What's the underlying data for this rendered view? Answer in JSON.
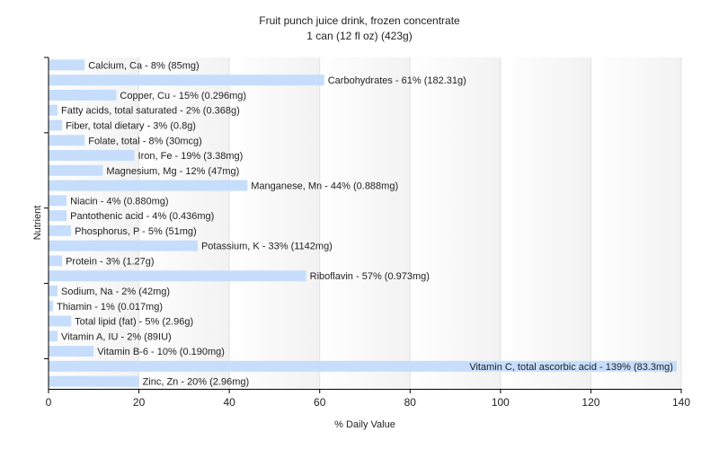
{
  "chart_data": {
    "type": "bar",
    "orientation": "horizontal",
    "title": "Fruit punch juice drink, frozen concentrate",
    "subtitle": "1 can (12 fl oz) (423g)",
    "xlabel": "% Daily Value",
    "ylabel": "Nutrient",
    "xlim": [
      0,
      140
    ],
    "xticks": [
      0,
      20,
      40,
      60,
      80,
      100,
      120,
      140
    ],
    "grid": true,
    "legend": "none",
    "bar_color": "#c6defc",
    "categories": [
      "Calcium, Ca",
      "Carbohydrates",
      "Copper, Cu",
      "Fatty acids, total saturated",
      "Fiber, total dietary",
      "Folate, total",
      "Iron, Fe",
      "Magnesium, Mg",
      "Manganese, Mn",
      "Niacin",
      "Pantothenic acid",
      "Phosphorus, P",
      "Potassium, K",
      "Protein",
      "Riboflavin",
      "Sodium, Na",
      "Thiamin",
      "Total lipid (fat)",
      "Vitamin A, IU",
      "Vitamin B-6",
      "Vitamin C, total ascorbic acid",
      "Zinc, Zn"
    ],
    "values": [
      8,
      61,
      15,
      2,
      3,
      8,
      19,
      12,
      44,
      4,
      4,
      5,
      33,
      3,
      57,
      2,
      1,
      5,
      2,
      10,
      139,
      20
    ],
    "labels": [
      "Calcium, Ca - 8% (85mg)",
      "Carbohydrates - 61% (182.31g)",
      "Copper, Cu - 15% (0.296mg)",
      "Fatty acids, total saturated - 2% (0.368g)",
      "Fiber, total dietary - 3% (0.8g)",
      "Folate, total - 8% (30mcg)",
      "Iron, Fe - 19% (3.38mg)",
      "Magnesium, Mg - 12% (47mg)",
      "Manganese, Mn - 44% (0.888mg)",
      "Niacin - 4% (0.880mg)",
      "Pantothenic acid - 4% (0.436mg)",
      "Phosphorus, P - 5% (51mg)",
      "Potassium, K - 33% (1142mg)",
      "Protein - 3% (1.27g)",
      "Riboflavin - 57% (0.973mg)",
      "Sodium, Na - 2% (42mg)",
      "Thiamin - 1% (0.017mg)",
      "Total lipid (fat) - 5% (2.96g)",
      "Vitamin A, IU - 2% (89IU)",
      "Vitamin B-6 - 10% (0.190mg)",
      "Vitamin C, total ascorbic acid - 139% (83.3mg)",
      "Zinc, Zn - 20% (2.96mg)"
    ]
  }
}
